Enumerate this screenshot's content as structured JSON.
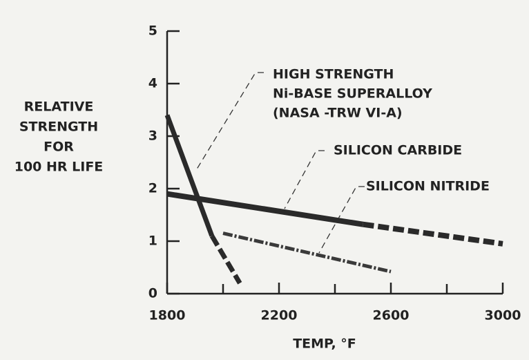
{
  "chart_data": {
    "type": "line",
    "ylabel": [
      "RELATIVE",
      "STRENGTH",
      "FOR",
      "100 HR LIFE"
    ],
    "xlabel": "TEMP, °F",
    "xlim": [
      1800,
      3000
    ],
    "xticks": [
      1800,
      2200,
      2600,
      3000
    ],
    "xminor": [
      2000,
      2400,
      2800
    ],
    "ylim": [
      0,
      5
    ],
    "yticks": [
      0,
      1,
      2,
      3,
      4,
      5
    ],
    "series": [
      {
        "name": [
          "HIGH STRENGTH",
          "Ni-BASE SUPERALLOY",
          "(NASA -TRW VI-A)"
        ],
        "color": "#2a2a2a",
        "x": [
          1800,
          1960,
          2060
        ],
        "values": [
          3.4,
          1.1,
          0.2
        ],
        "dash_from": 1
      },
      {
        "name": [
          "SILICON CARBIDE"
        ],
        "color": "#2a2a2a",
        "x": [
          1800,
          2500,
          3000
        ],
        "values": [
          1.9,
          1.32,
          0.95
        ],
        "dash_from": 1
      },
      {
        "name": [
          "SILICON NITRIDE"
        ],
        "color": "#3a3a3a",
        "x": [
          2000,
          2600
        ],
        "values": [
          1.15,
          0.42
        ],
        "dash_from": 0
      }
    ]
  }
}
